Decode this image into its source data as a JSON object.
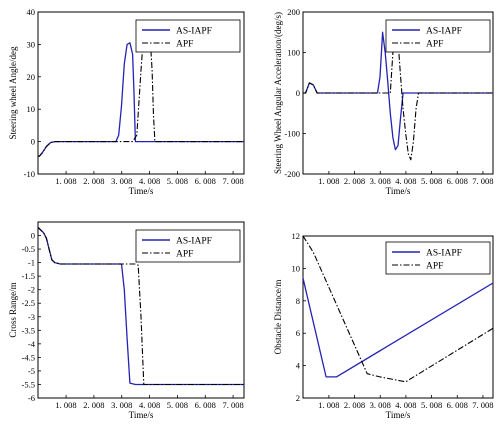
{
  "colors": {
    "as_iapf": "#2323b4",
    "apf": "#000000"
  },
  "chart_data": [
    {
      "type": "line",
      "ylabel": "Steering wheel Angle/deg",
      "xlabel": "Time/s",
      "xlim": [
        0,
        7.4
      ],
      "ylim": [
        -10,
        40
      ],
      "xticks": [
        1.008,
        2.008,
        3.008,
        4.008,
        5.008,
        6.008,
        7.008
      ],
      "xtick_labels": [
        "1. 008",
        "2. 008",
        "3. 008",
        "4. 008",
        "5. 008",
        "6. 008",
        "7. 008"
      ],
      "yticks": [
        -10,
        0,
        10,
        20,
        30,
        40
      ],
      "ytick_labels": [
        "-10",
        "0",
        "10",
        "20",
        "30",
        "40"
      ],
      "legend_position": "top-right",
      "series": [
        {
          "name": "AS-IAPF",
          "style": "solid",
          "x": [
            0,
            0.05,
            0.15,
            0.3,
            0.45,
            0.6,
            1.0,
            2.0,
            2.8,
            2.9,
            3.0,
            3.1,
            3.2,
            3.3,
            3.4,
            3.45,
            3.5,
            4.0,
            7.4
          ],
          "y": [
            -4.5,
            -4.5,
            -3.5,
            -1.5,
            -0.3,
            0,
            0,
            0,
            0,
            2,
            11,
            24,
            30,
            30.5,
            27,
            15,
            0,
            0,
            0
          ]
        },
        {
          "name": "APF",
          "style": "dashdot",
          "x": [
            0,
            0.05,
            0.15,
            0.3,
            0.45,
            0.6,
            1.0,
            2.0,
            3.0,
            3.4,
            3.55,
            3.7,
            3.8,
            3.9,
            4.0,
            4.1,
            4.15,
            4.2,
            5.0,
            7.4
          ],
          "y": [
            -4.5,
            -4.5,
            -3.5,
            -1.5,
            -0.3,
            0,
            0,
            0,
            0,
            0,
            2,
            22,
            34,
            37,
            36,
            22,
            8,
            0,
            0,
            0
          ]
        }
      ]
    },
    {
      "type": "line",
      "ylabel": "Steering Wheel Angular Acceleration/(deg/s)",
      "xlabel": "Time/s",
      "xlim": [
        0,
        7.4
      ],
      "ylim": [
        -200,
        200
      ],
      "xticks": [
        1.008,
        2.008,
        3.008,
        4.008,
        5.008,
        6.008,
        7.008
      ],
      "xtick_labels": [
        "1. 008",
        "2. 008",
        "3. 008",
        "4. 008",
        "5. 008",
        "6. 008",
        "7. 008"
      ],
      "yticks": [
        -200,
        -100,
        0,
        100,
        200
      ],
      "ytick_labels": [
        "-200",
        "-100",
        "0",
        "100",
        "200"
      ],
      "legend_position": "top-right",
      "series": [
        {
          "name": "AS-IAPF",
          "style": "solid",
          "x": [
            0,
            0.1,
            0.25,
            0.4,
            0.55,
            0.8,
            2.9,
            3.0,
            3.1,
            3.2,
            3.3,
            3.4,
            3.5,
            3.6,
            3.7,
            3.8,
            3.9,
            4.0,
            7.4
          ],
          "y": [
            0,
            0,
            25,
            20,
            0,
            0,
            0,
            40,
            150,
            100,
            30,
            -50,
            -110,
            -140,
            -130,
            -60,
            0,
            0,
            0
          ]
        },
        {
          "name": "APF",
          "style": "dashdot",
          "x": [
            0,
            0.1,
            0.25,
            0.4,
            0.55,
            0.8,
            3.4,
            3.5,
            3.6,
            3.7,
            3.8,
            3.9,
            4.0,
            4.1,
            4.2,
            4.3,
            4.4,
            4.5,
            7.4
          ],
          "y": [
            0,
            0,
            25,
            20,
            0,
            0,
            0,
            100,
            180,
            130,
            40,
            -40,
            -100,
            -150,
            -165,
            -120,
            -40,
            0,
            0
          ]
        }
      ]
    },
    {
      "type": "line",
      "ylabel": "Cross Range/m",
      "xlabel": "Time/s",
      "xlim": [
        0,
        7.4
      ],
      "ylim": [
        -6,
        0.5
      ],
      "xticks": [
        1.008,
        2.008,
        3.008,
        4.008,
        5.008,
        6.008,
        7.008
      ],
      "xtick_labels": [
        "1. 008",
        "2. 008",
        "3. 008",
        "4. 008",
        "5. 008",
        "6. 008",
        "7. 008"
      ],
      "yticks": [
        -6,
        -5.5,
        -5,
        -4.5,
        -4,
        -3.5,
        -3,
        -2.5,
        -2,
        -1.5,
        -1,
        -0.5,
        0
      ],
      "ytick_labels": [
        "-6",
        "-5.5",
        "-5",
        "-4.5",
        "-4",
        "-3.5",
        "-3",
        "-2.5",
        "-2",
        "-1.5",
        "-1",
        "-0.5",
        "0"
      ],
      "legend_position": "top-right",
      "series": [
        {
          "name": "AS-IAPF",
          "style": "solid",
          "x": [
            0,
            0.1,
            0.2,
            0.3,
            0.4,
            0.5,
            0.6,
            0.8,
            1.0,
            1.5,
            2.0,
            2.5,
            3.0,
            3.1,
            3.2,
            3.3,
            3.5,
            7.4
          ],
          "y": [
            0.3,
            0.2,
            0.1,
            -0.1,
            -0.5,
            -0.9,
            -1.0,
            -1.05,
            -1.05,
            -1.05,
            -1.05,
            -1.05,
            -1.05,
            -2.0,
            -3.8,
            -5.45,
            -5.5,
            -5.5
          ]
        },
        {
          "name": "APF",
          "style": "dashdot",
          "x": [
            0,
            0.1,
            0.2,
            0.3,
            0.4,
            0.5,
            0.6,
            0.8,
            1.0,
            1.5,
            2.0,
            2.5,
            3.0,
            3.5,
            3.6,
            3.7,
            3.8,
            7.4
          ],
          "y": [
            0.3,
            0.2,
            0.1,
            -0.1,
            -0.5,
            -0.9,
            -1.0,
            -1.05,
            -1.05,
            -1.05,
            -1.05,
            -1.05,
            -1.05,
            -1.05,
            -1.1,
            -3.0,
            -5.5,
            -5.5
          ]
        }
      ]
    },
    {
      "type": "line",
      "ylabel": "Obstacle Distance/m",
      "xlabel": "Time/s",
      "xlim": [
        0,
        7.4
      ],
      "ylim": [
        2,
        12
      ],
      "xticks": [
        1.008,
        2.008,
        3.008,
        4.008,
        5.008,
        6.008,
        7.008
      ],
      "xtick_labels": [
        "1. 008",
        "2. 008",
        "3. 008",
        "4. 008",
        "5. 008",
        "6. 008",
        "7. 008"
      ],
      "yticks": [
        2,
        4,
        6,
        8,
        10,
        12
      ],
      "ytick_labels": [
        "2",
        "4",
        "6",
        "8",
        "10",
        "12"
      ],
      "legend_position": "top-right",
      "series": [
        {
          "name": "AS-IAPF",
          "style": "solid",
          "x": [
            0,
            0.9,
            1.3,
            7.4
          ],
          "y": [
            9.4,
            3.3,
            3.3,
            9.1
          ]
        },
        {
          "name": "APF",
          "style": "dashdot",
          "x": [
            0,
            0.4,
            2.5,
            3.0,
            4.0,
            7.4
          ],
          "y": [
            12,
            11,
            3.5,
            3.3,
            3.0,
            6.3
          ]
        }
      ]
    }
  ]
}
